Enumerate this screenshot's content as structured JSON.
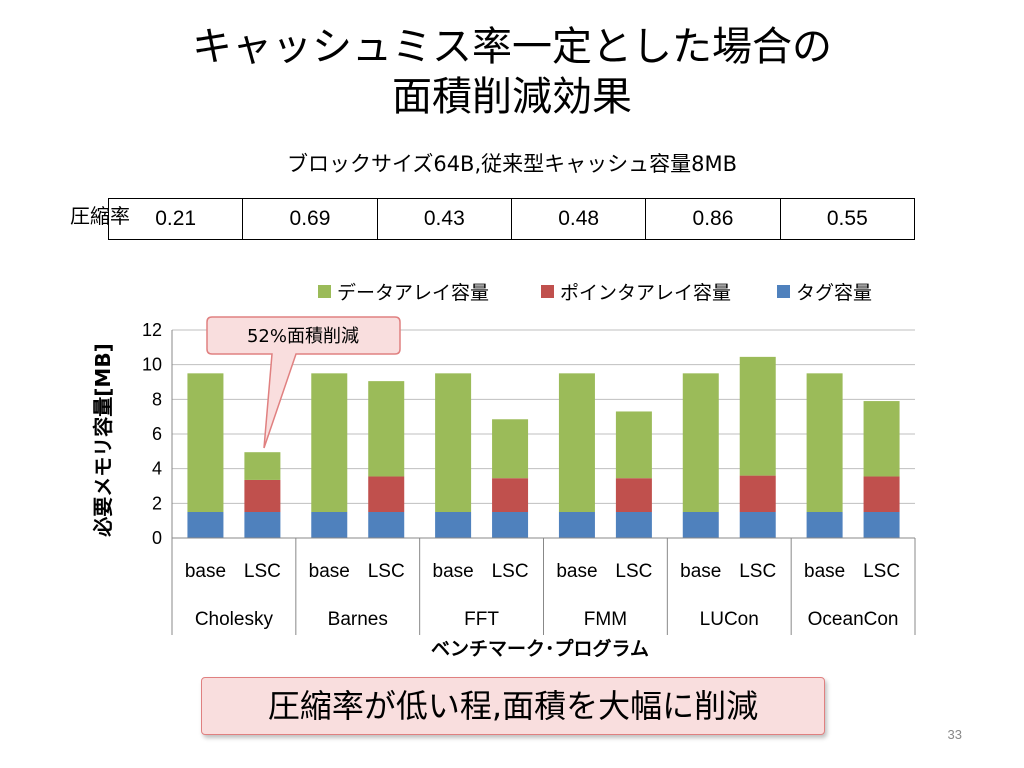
{
  "slide": {
    "title_line1": "キャッシュミス率一定とした場合の",
    "title_line2": "面積削減効果",
    "subtitle": "ブロックサイズ64B,従来型キャッシュ容量8MB",
    "ratio_label": "圧縮率",
    "ratios": [
      "0.21",
      "0.69",
      "0.43",
      "0.48",
      "0.86",
      "0.55"
    ],
    "callout": "52%面積削減",
    "conclusion": "圧縮率が低い程,面積を大幅に削減",
    "page_number": "33"
  },
  "colors": {
    "data_array": "#9bbb59",
    "pointer_array": "#c0504d",
    "tag": "#4f81bd",
    "callout_fill": "#f9dede",
    "callout_border": "#e08080"
  },
  "chart_data": {
    "type": "bar",
    "stacked": true,
    "ylabel": "必要メモリ容量[MB]",
    "xlabel": "ベンチマーク･プログラム",
    "ylim": [
      0,
      12
    ],
    "yticks": [
      "0",
      "2",
      "4",
      "6",
      "8",
      "10",
      "12"
    ],
    "grid": true,
    "legend_position": "top",
    "groups": [
      "Cholesky",
      "Barnes",
      "FFT",
      "FMM",
      "LUCon",
      "OceanCon"
    ],
    "categories": [
      "base",
      "LSC",
      "base",
      "LSC",
      "base",
      "LSC",
      "base",
      "LSC",
      "base",
      "LSC",
      "base",
      "LSC"
    ],
    "series": [
      {
        "name": "タグ容量",
        "color": "#4f81bd",
        "values": [
          1.5,
          1.5,
          1.5,
          1.5,
          1.5,
          1.5,
          1.5,
          1.5,
          1.5,
          1.5,
          1.5,
          1.5
        ]
      },
      {
        "name": "ポインタアレイ容量",
        "color": "#c0504d",
        "values": [
          0,
          1.85,
          0,
          2.05,
          0,
          1.95,
          0,
          1.95,
          0,
          2.1,
          0,
          2.05
        ]
      },
      {
        "name": "データアレイ容量",
        "color": "#9bbb59",
        "values": [
          8.0,
          1.6,
          8.0,
          5.5,
          8.0,
          3.4,
          8.0,
          3.85,
          8.0,
          6.85,
          8.0,
          4.35
        ]
      }
    ],
    "legend_order": [
      "データアレイ容量",
      "ポインタアレイ容量",
      "タグ容量"
    ]
  }
}
